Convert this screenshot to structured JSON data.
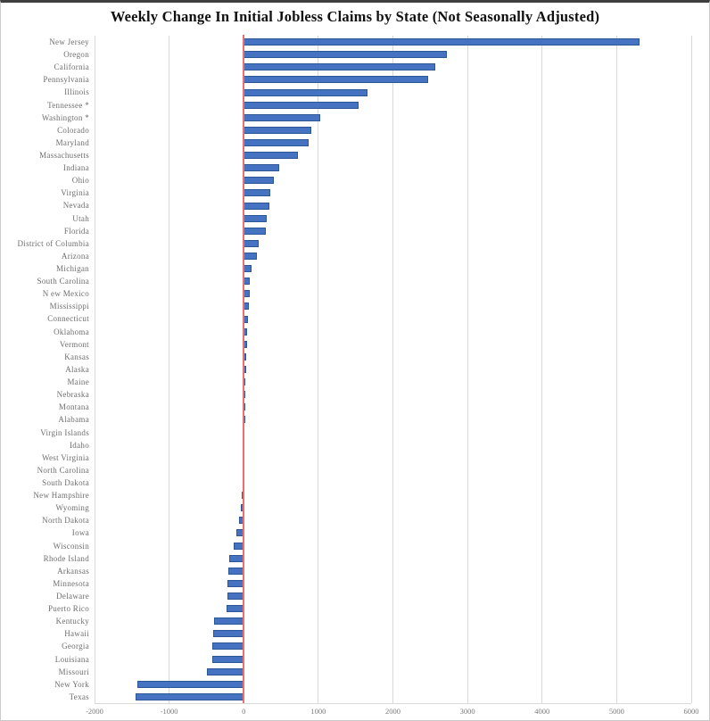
{
  "chart_data": {
    "type": "bar",
    "orientation": "horizontal",
    "title": "Weekly Change In Initial Jobless Claims by State (Not Seasonally Adjusted)",
    "categories": [
      "New Jersey",
      "Oregon",
      "California",
      "Pennsylvania",
      "Illinois",
      "Tennessee *",
      "Washington *",
      "Colorado",
      "Maryland",
      "Massachusetts",
      "Indiana",
      "Ohio",
      "Virginia",
      "Nevada",
      "Utah",
      "Florida",
      "District of Columbia",
      "Arizona",
      "Michigan",
      "South Carolina",
      "N ew Mexico",
      "Mississippi",
      "Connecticut",
      "Oklahoma",
      "Vermont",
      "Kansas",
      "Alaska",
      "Maine",
      "Nebraska",
      "Montana",
      "Alabama",
      "Virgin Islands",
      "Idaho",
      "West Virginia",
      "North Carolina",
      "South Dakota",
      "New Hampshire",
      "Wyoming",
      "North Dakota",
      "Iowa",
      "Wisconsin",
      "Rhode Island",
      "Arkansas",
      "Minnesota",
      "Delaware",
      "Puerto Rico",
      "Kentucky",
      "Hawaii",
      "Georgia",
      "Louisiana",
      "Missouri",
      "New York",
      "Texas"
    ],
    "values": [
      5310,
      2720,
      2570,
      2470,
      1660,
      1540,
      1030,
      910,
      875,
      725,
      475,
      405,
      350,
      340,
      310,
      300,
      195,
      175,
      105,
      80,
      75,
      68,
      60,
      50,
      44,
      38,
      33,
      26,
      22,
      18,
      12,
      -3,
      -5,
      -10,
      -15,
      -20,
      -30,
      -40,
      -60,
      -95,
      -135,
      -190,
      -205,
      -215,
      -220,
      -230,
      -400,
      -410,
      -420,
      -425,
      -490,
      -1425,
      -1445
    ],
    "xlabel": "",
    "ylabel": "",
    "xlim": [
      -2000,
      6000
    ],
    "xticks": [
      -2000,
      -1000,
      0,
      1000,
      2000,
      3000,
      4000,
      5000,
      6000
    ],
    "xtick_labels": [
      "-2000",
      "-1000",
      "0",
      "1000",
      "2000",
      "3000",
      "4000",
      "5000",
      "6000"
    ],
    "grid": true,
    "zero_line": true,
    "legend": "none",
    "colors": {
      "bar_fill": "#4673c1",
      "bar_border": "#2d5697",
      "zero_line": "#ee6f6b",
      "gridline": "#d9d9d9",
      "state_label_text": "#6e6e6e",
      "tick_label_text": "#7a7a7a",
      "title_text": "#111111"
    }
  }
}
